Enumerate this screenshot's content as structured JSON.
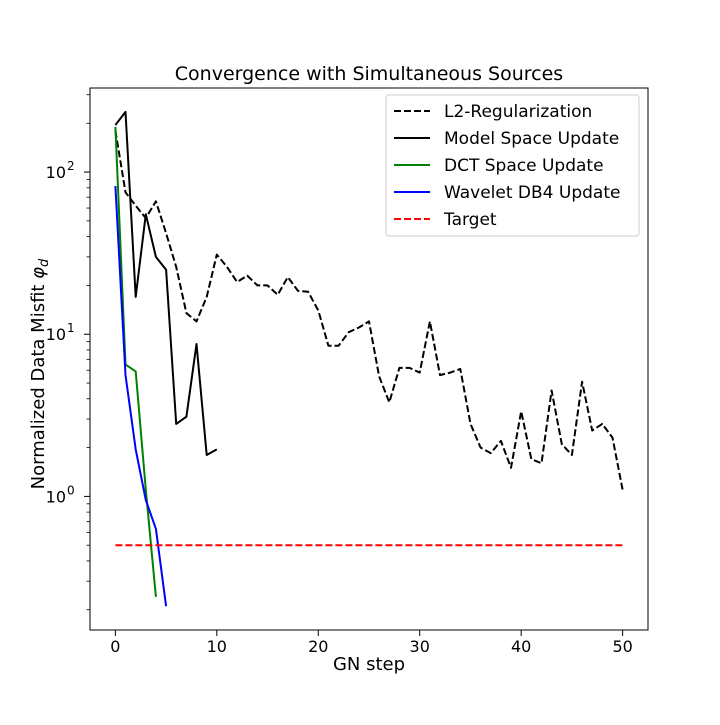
{
  "chart_data": {
    "type": "line",
    "title": "Convergence with Simultaneous Sources",
    "xlabel": "GN step",
    "ylabel": "Normalized Data Misfit ",
    "ylabel_symbol": "φ",
    "ylabel_subscript": "d",
    "yscale": "log",
    "xlim": [
      -2.5,
      52.5
    ],
    "ylim": [
      0.15,
      330
    ],
    "xticks": [
      0,
      10,
      20,
      30,
      40,
      50
    ],
    "xtick_labels": [
      "0",
      "10",
      "20",
      "30",
      "40",
      "50"
    ],
    "yticks_major": [
      1,
      10,
      100
    ],
    "ytick_labels": {
      "base": "10",
      "exponents": [
        "0",
        "1",
        "2"
      ]
    },
    "yticks_minor": [
      0.2,
      0.3,
      0.4,
      0.5,
      0.6,
      0.7,
      0.8,
      0.9,
      2,
      3,
      4,
      5,
      6,
      7,
      8,
      9,
      20,
      30,
      40,
      50,
      60,
      70,
      80,
      90,
      200,
      300
    ],
    "grid": false,
    "legend_position": "top-right",
    "series": [
      {
        "name": "L2-Regularization",
        "color": "#000000",
        "dash": "dashed",
        "x": [
          0,
          1,
          2,
          3,
          4,
          5,
          6,
          7,
          8,
          9,
          10,
          11,
          12,
          13,
          14,
          15,
          16,
          17,
          18,
          19,
          20,
          21,
          22,
          23,
          24,
          25,
          26,
          27,
          28,
          29,
          30,
          31,
          32,
          33,
          34,
          35,
          36,
          37,
          38,
          39,
          40,
          41,
          42,
          43,
          44,
          45,
          46,
          47,
          48,
          49,
          50
        ],
        "y": [
          180,
          75,
          62,
          52,
          66,
          42,
          26,
          13.5,
          12,
          17,
          31,
          26,
          21,
          23,
          20,
          20,
          17.5,
          22.5,
          18.5,
          18.3,
          14,
          8.5,
          8.5,
          10.3,
          11,
          12,
          5.5,
          3.8,
          6.2,
          6.2,
          5.8,
          12,
          5.6,
          5.8,
          6.1,
          2.8,
          2.0,
          1.85,
          2.2,
          1.5,
          3.35,
          1.7,
          1.6,
          4.5,
          2.1,
          1.8,
          5.1,
          2.55,
          2.8,
          2.3,
          1.1
        ]
      },
      {
        "name": "Model Space Update",
        "color": "#000000",
        "dash": "solid",
        "x": [
          0,
          1,
          2,
          3,
          4,
          5,
          6,
          7,
          8,
          9,
          10
        ],
        "y": [
          195,
          235,
          17,
          55,
          30,
          25,
          2.8,
          3.1,
          8.7,
          1.8,
          1.95
        ]
      },
      {
        "name": "DCT Space Update",
        "color": "#008000",
        "dash": "solid",
        "x": [
          0,
          1,
          2,
          3,
          4
        ],
        "y": [
          190,
          6.5,
          5.9,
          1.1,
          0.24
        ]
      },
      {
        "name": "Wavelet DB4 Update",
        "color": "#0000ff",
        "dash": "solid",
        "x": [
          0,
          1,
          2,
          3,
          4,
          5
        ],
        "y": [
          82,
          5.6,
          1.95,
          0.95,
          0.63,
          0.21
        ]
      },
      {
        "name": "Target",
        "color": "#ff0000",
        "dash": "dashed",
        "x": [
          0,
          50
        ],
        "y": [
          0.5,
          0.5
        ]
      }
    ]
  }
}
